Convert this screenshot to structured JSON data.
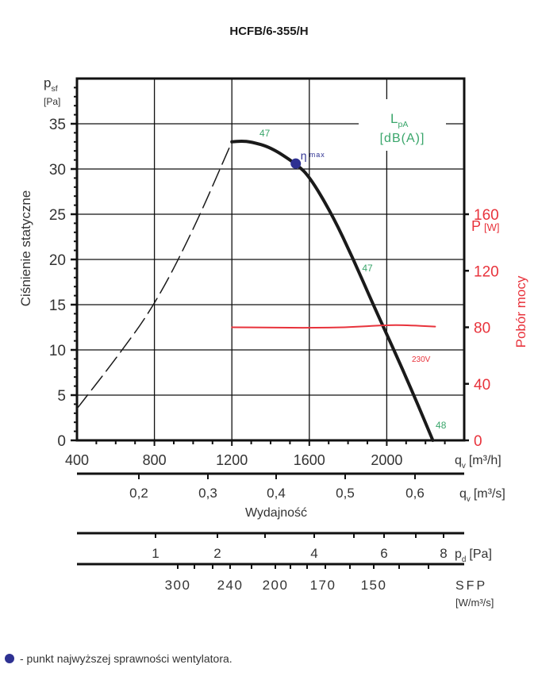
{
  "chart_data": {
    "type": "line",
    "title": "HCFB/6-355/H",
    "ylabel": "Ciśnienie statyczne",
    "ylabel_symbol": "p",
    "ylabel_sub": "sf",
    "ylabel_unit": "[Pa]",
    "xlabel": "Wydajność",
    "xlim": [
      400,
      2400
    ],
    "ylim": [
      0,
      40
    ],
    "grid": true,
    "x_ticks": [
      400,
      800,
      1200,
      1600,
      2000
    ],
    "x_tick_labels": [
      "400",
      "800",
      "1200",
      "1600",
      "2000"
    ],
    "x_unit_symbol": "q",
    "x_unit_sub": "v",
    "x_unit": "[m³/h]",
    "y_ticks": [
      0,
      5,
      10,
      15,
      20,
      25,
      30,
      35
    ],
    "y_tick_labels": [
      "0",
      "5",
      "10",
      "15",
      "20",
      "25",
      "30",
      "35"
    ],
    "right_axis": {
      "label": "Pobór mocy",
      "symbol": "P",
      "unit": "[W]",
      "ticks": [
        0,
        40,
        80,
        120,
        160
      ],
      "tick_labels": [
        "0",
        "40",
        "80",
        "120",
        "160"
      ],
      "ylim": [
        0,
        256
      ],
      "color": "#e8333c"
    },
    "series": [
      {
        "name": "characteristic-unstable",
        "style": "dashed",
        "color": "#1a1a1a",
        "x": [
          400,
          600,
          800,
          1000,
          1200
        ],
        "y": [
          3.5,
          9,
          14.9,
          23.2,
          33
        ]
      },
      {
        "name": "characteristic",
        "style": "solid",
        "color": "#1a1a1a",
        "x": [
          1200,
          1250,
          1300,
          1400,
          1530,
          1600,
          1717,
          1828,
          1930,
          2037,
          2140,
          2238
        ],
        "y": [
          33,
          33.1,
          33,
          32.4,
          30.6,
          29.2,
          25,
          20,
          15,
          10,
          5,
          0
        ]
      },
      {
        "name": "power-230V",
        "style": "solid",
        "color": "#e8333c",
        "axis": "right",
        "label": "230V",
        "x": [
          1200,
          1400,
          1600,
          1800,
          2000,
          2100,
          2250
        ],
        "y": [
          80,
          79.8,
          79.6,
          80,
          81.6,
          81.5,
          80.5
        ]
      }
    ],
    "eta_max": {
      "x": 1530,
      "y": 30.6,
      "label": "η",
      "label_sub": "max",
      "color": "#2e3192"
    },
    "noise_labels": [
      {
        "x": 1370,
        "y": 33.6,
        "text": "47"
      },
      {
        "x": 1900,
        "y": 18.7,
        "text": "47"
      },
      {
        "x": 2280,
        "y": 1.3,
        "text": "48"
      }
    ],
    "noise_legend": {
      "symbol": "L",
      "sub": "pA",
      "unit": "[dB(A)]",
      "color": "#3aa66b"
    },
    "secondary_axes": [
      {
        "name": "qv-m3s",
        "symbol": "q",
        "sub": "v",
        "unit": "[m³/s]",
        "ticks": [
          0.2,
          0.3,
          0.4,
          0.5,
          0.6
        ],
        "tick_labels": [
          "0,2",
          "0,3",
          "0,4",
          "0,5",
          "0,6"
        ]
      },
      {
        "name": "pd",
        "symbol": "p",
        "sub": "d",
        "unit": "[Pa]",
        "tick_labels": [
          "1",
          "2",
          "4",
          "6",
          "8"
        ]
      },
      {
        "name": "sfp",
        "symbol": "SFP",
        "unit": "[W/m³/s]",
        "tick_labels": [
          "300",
          "240",
          "200",
          "170",
          "150"
        ]
      }
    ]
  },
  "legend": {
    "text": "- punkt najwyższej sprawności wentylatora.",
    "color": "#2e3192"
  }
}
